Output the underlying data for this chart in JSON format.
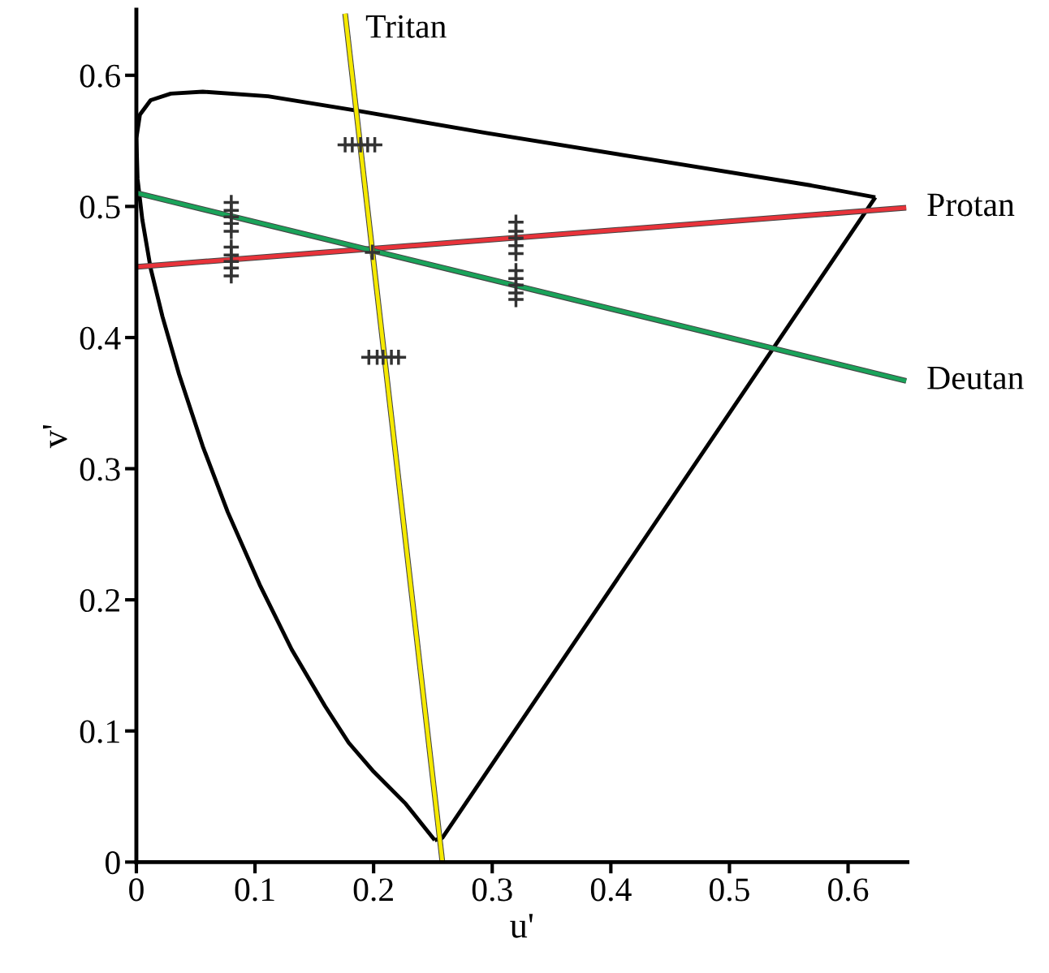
{
  "chart_data": {
    "type": "line",
    "xlabel": "u'",
    "ylabel": "v'",
    "xlim": [
      0,
      0.65
    ],
    "ylim": [
      0,
      0.65
    ],
    "xticks": [
      0,
      0.1,
      0.2,
      0.3,
      0.4,
      0.5,
      0.6
    ],
    "yticks": [
      0,
      0.1,
      0.2,
      0.3,
      0.4,
      0.5,
      0.6
    ],
    "grid": false,
    "legend": false,
    "series": [
      {
        "color": "#000000",
        "x": [
          0.2515,
          0.227,
          0.2,
          0.179,
          0.159,
          0.131,
          0.104,
          0.077,
          0.056,
          0.036,
          0.022,
          0.012,
          0.005,
          0.001,
          0.0,
          0.003,
          0.012,
          0.029,
          0.056,
          0.111,
          0.186,
          0.295,
          0.432,
          0.569,
          0.623
        ],
        "values": [
          0.0167,
          0.0445,
          0.069,
          0.091,
          0.119,
          0.162,
          0.2115,
          0.267,
          0.317,
          0.372,
          0.416,
          0.453,
          0.49,
          0.521,
          0.552,
          0.57,
          0.581,
          0.586,
          0.5875,
          0.584,
          0.573,
          0.556,
          0.536,
          0.516,
          0.507
        ]
      },
      {
        "color": "#000000",
        "x": [
          0.2515,
          0.258,
          0.623
        ],
        "values": [
          0.0167,
          0.0185,
          0.507
        ]
      },
      {
        "name": "Protan",
        "color": "#e8333a",
        "x": [
          0.001,
          0.649
        ],
        "values": [
          0.454,
          0.499
        ]
      },
      {
        "name": "Deutan",
        "color": "#1aa35a",
        "x": [
          0.001,
          0.649
        ],
        "values": [
          0.51,
          0.367
        ]
      },
      {
        "name": "Tritan",
        "color": "#f5e900",
        "x": [
          0.258,
          0.176
        ],
        "values": [
          0.0,
          0.647
        ]
      },
      {
        "type": "scatter",
        "marker": "cross",
        "color": "#333333",
        "x": [
          0.08,
          0.08,
          0.08,
          0.08,
          0.08,
          0.08,
          0.08,
          0.08,
          0.08,
          0.08,
          0.32,
          0.32,
          0.32,
          0.32,
          0.32,
          0.32,
          0.32,
          0.32,
          0.32,
          0.32,
          0.176,
          0.182,
          0.189,
          0.195,
          0.201,
          0.196,
          0.203,
          0.208,
          0.215,
          0.221
        ],
        "values": [
          0.503,
          0.497,
          0.492,
          0.487,
          0.481,
          0.469,
          0.463,
          0.458,
          0.453,
          0.447,
          0.488,
          0.481,
          0.476,
          0.47,
          0.464,
          0.451,
          0.445,
          0.44,
          0.434,
          0.429,
          0.547,
          0.547,
          0.547,
          0.547,
          0.547,
          0.385,
          0.385,
          0.385,
          0.385,
          0.385
        ]
      },
      {
        "type": "scatter",
        "marker": "cross",
        "color": "#333333",
        "x": [
          0.199
        ],
        "values": [
          0.465
        ]
      }
    ]
  }
}
